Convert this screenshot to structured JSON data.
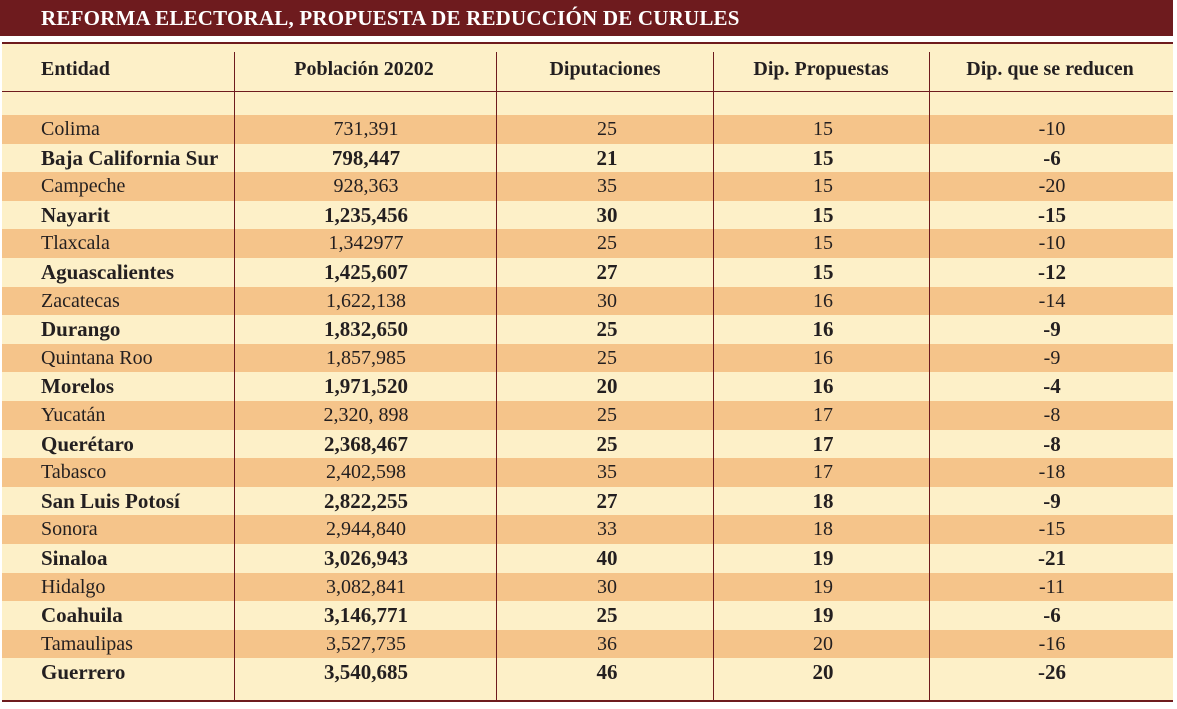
{
  "title": "REFORMA ELECTORAL, PROPUESTA DE REDUCCIÓN DE CURULES",
  "headers": {
    "entidad": "Entidad",
    "poblacion": "Población 20202",
    "diputaciones": "Diputaciones",
    "propuestas": "Dip. Propuestas",
    "reducen": "Dip. que se reducen"
  },
  "rows": [
    {
      "entidad": "Colima",
      "poblacion": "731,391",
      "diputaciones": "25",
      "propuestas": "15",
      "reducen": "-10"
    },
    {
      "entidad": "Baja California Sur",
      "poblacion": "798,447",
      "diputaciones": "21",
      "propuestas": "15",
      "reducen": "-6"
    },
    {
      "entidad": "Campeche",
      "poblacion": "928,363",
      "diputaciones": "35",
      "propuestas": "15",
      "reducen": "-20"
    },
    {
      "entidad": "Nayarit",
      "poblacion": "1,235,456",
      "diputaciones": "30",
      "propuestas": "15",
      "reducen": "-15"
    },
    {
      "entidad": "Tlaxcala",
      "poblacion": "1,342977",
      "diputaciones": "25",
      "propuestas": "15",
      "reducen": "-10"
    },
    {
      "entidad": "Aguascalientes",
      "poblacion": "1,425,607",
      "diputaciones": "27",
      "propuestas": "15",
      "reducen": "-12"
    },
    {
      "entidad": "Zacatecas",
      "poblacion": "1,622,138",
      "diputaciones": "30",
      "propuestas": "16",
      "reducen": "-14"
    },
    {
      "entidad": "Durango",
      "poblacion": "1,832,650",
      "diputaciones": "25",
      "propuestas": "16",
      "reducen": "-9"
    },
    {
      "entidad": "Quintana Roo",
      "poblacion": "1,857,985",
      "diputaciones": "25",
      "propuestas": "16",
      "reducen": "-9"
    },
    {
      "entidad": "Morelos",
      "poblacion": "1,971,520",
      "diputaciones": "20",
      "propuestas": "16",
      "reducen": "-4"
    },
    {
      "entidad": "Yucatán",
      "poblacion": "2,320, 898",
      "diputaciones": "25",
      "propuestas": "17",
      "reducen": "-8"
    },
    {
      "entidad": "Querétaro",
      "poblacion": "2,368,467",
      "diputaciones": "25",
      "propuestas": "17",
      "reducen": "-8"
    },
    {
      "entidad": "Tabasco",
      "poblacion": "2,402,598",
      "diputaciones": "35",
      "propuestas": "17",
      "reducen": "-18"
    },
    {
      "entidad": "San Luis Potosí",
      "poblacion": "2,822,255",
      "diputaciones": "27",
      "propuestas": "18",
      "reducen": "-9"
    },
    {
      "entidad": "Sonora",
      "poblacion": "2,944,840",
      "diputaciones": "33",
      "propuestas": "18",
      "reducen": "-15"
    },
    {
      "entidad": "Sinaloa",
      "poblacion": "3,026,943",
      "diputaciones": "40",
      "propuestas": "19",
      "reducen": "-21"
    },
    {
      "entidad": "Hidalgo",
      "poblacion": "3,082,841",
      "diputaciones": "30",
      "propuestas": "19",
      "reducen": "-11"
    },
    {
      "entidad": "Coahuila",
      "poblacion": "3,146,771",
      "diputaciones": "25",
      "propuestas": "19",
      "reducen": "-6"
    },
    {
      "entidad": "Tamaulipas",
      "poblacion": "3,527,735",
      "diputaciones": "36",
      "propuestas": "20",
      "reducen": "-16"
    },
    {
      "entidad": "Guerrero",
      "poblacion": "3,540,685",
      "diputaciones": "46",
      "propuestas": "20",
      "reducen": "-26"
    }
  ],
  "colors": {
    "title_bar": "#6e1b1e",
    "row_light": "#fdf0c8",
    "row_dark": "#f5c48a",
    "rule": "#6e1b1e"
  }
}
